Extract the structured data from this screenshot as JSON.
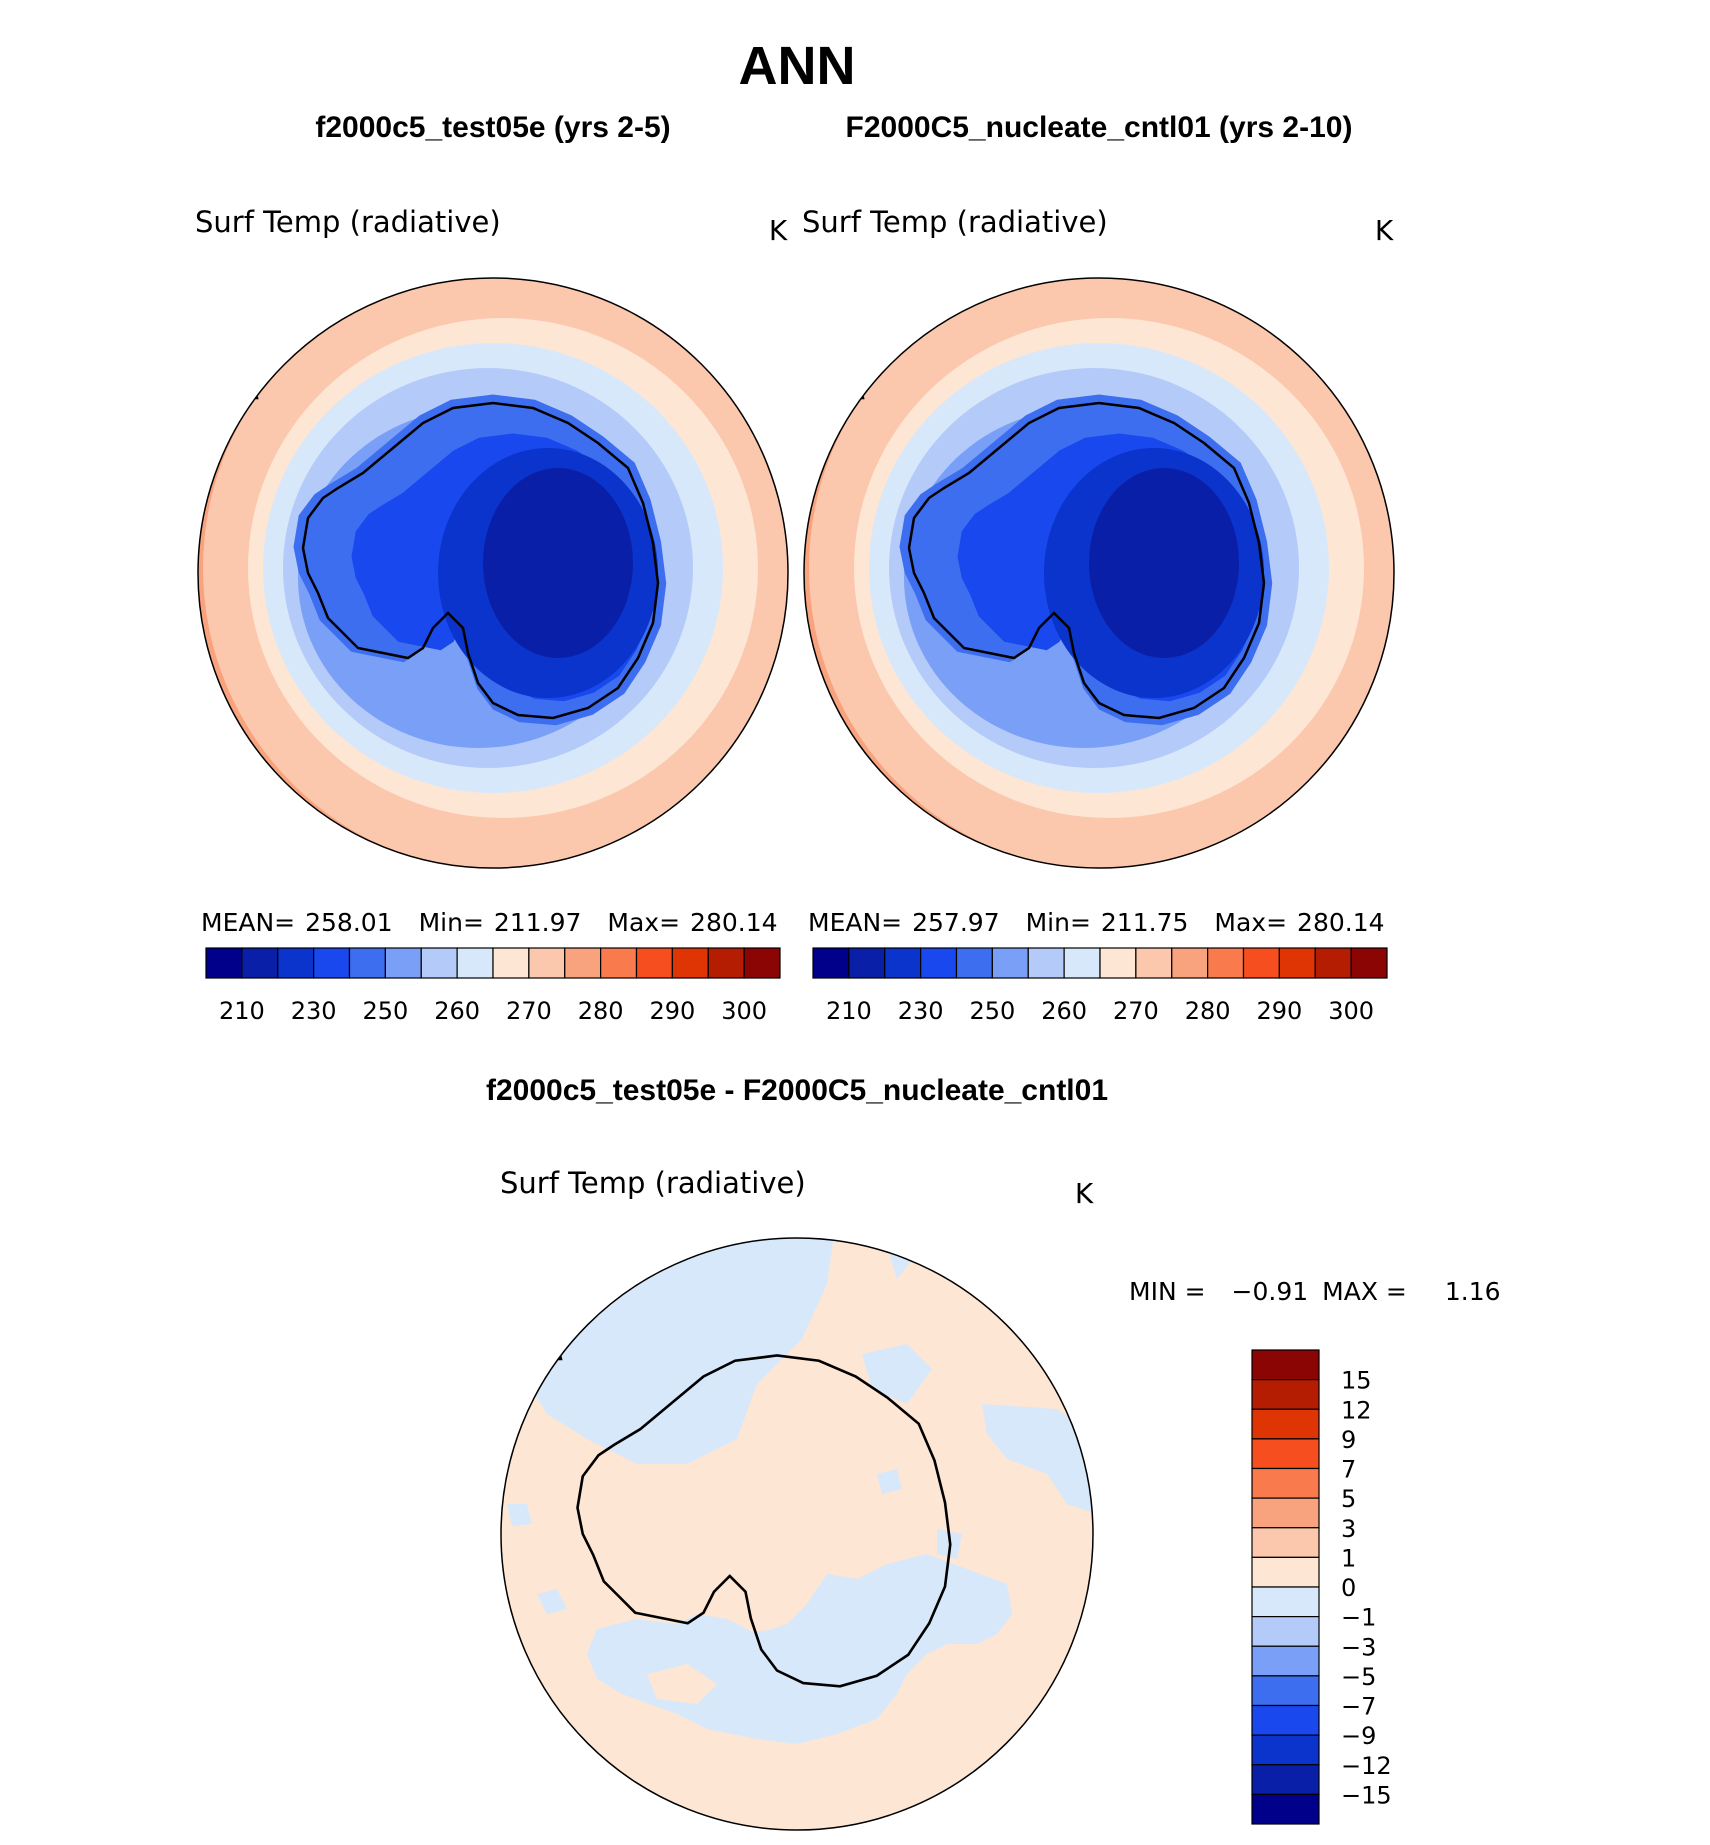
{
  "main_title": "ANN",
  "panels": [
    {
      "case_title": "f2000c5_test05e (yrs 2-5)",
      "variable": "Surf Temp (radiative)",
      "units": "K",
      "stats": {
        "mean_label": "MEAN=",
        "mean": "258.01",
        "min_label": "Min=",
        "min": "211.97",
        "max_label": "Max=",
        "max": "280.14"
      }
    },
    {
      "case_title": "F2000C5_nucleate_cntl01 (yrs 2-10)",
      "variable": "Surf Temp (radiative)",
      "units": "K",
      "stats": {
        "mean_label": "MEAN=",
        "mean": "257.97",
        "min_label": "Min=",
        "min": "211.75",
        "max_label": "Max=",
        "max": "280.14"
      }
    }
  ],
  "abs_colorbar": {
    "colors": [
      "#00008b",
      "#0a1fa8",
      "#0b34cc",
      "#1848ee",
      "#3e6ef0",
      "#7a9ff6",
      "#b4cbf9",
      "#d8e8fb",
      "#fde6d4",
      "#fbc7ad",
      "#f9a27e",
      "#f97a4c",
      "#f64e1f",
      "#df3505",
      "#b51d02",
      "#8a0503"
    ],
    "tick_labels": [
      "210",
      "230",
      "250",
      "260",
      "270",
      "280",
      "290",
      "300"
    ]
  },
  "diff": {
    "title": "f2000c5_test05e - F2000C5_nucleate_cntl01",
    "variable": "Surf Temp (radiative)",
    "units": "K",
    "min_label": "MIN =",
    "min": "−0.91",
    "max_label": "MAX =",
    "max": "1.16",
    "colorbar": {
      "colors": [
        "#8a0503",
        "#b51d02",
        "#df3505",
        "#f64e1f",
        "#f97a4c",
        "#f9a27e",
        "#fbc7ad",
        "#fde6d4",
        "#d8e8fb",
        "#b4cbf9",
        "#7a9ff6",
        "#3e6ef0",
        "#1848ee",
        "#0b34cc",
        "#0a1fa8",
        "#00008b"
      ],
      "tick_labels": [
        "15",
        "12",
        "9",
        "7",
        "5",
        "3",
        "1",
        "0",
        "−1",
        "−3",
        "−5",
        "−7",
        "−9",
        "−12",
        "−15"
      ]
    }
  },
  "map_colors": {
    "outer": "#f9a27e",
    "warm_mid": "#fbc7ad",
    "warm_light": "#fde6d4",
    "cool_light": "#d8e8fb",
    "cool_mid": "#b4cbf9",
    "cool_blue": "#7a9ff6",
    "blue": "#3e6ef0",
    "blue_dark": "#1848ee",
    "blue_deeper": "#0b34cc",
    "interior": "#0a1fa8",
    "coast_line": "#000000"
  }
}
